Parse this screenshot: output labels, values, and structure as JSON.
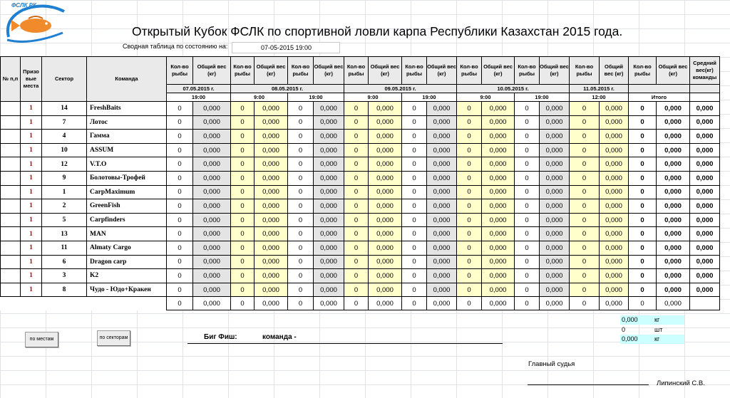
{
  "logo": {
    "text": "ФСЛК РК",
    "colors": {
      "ring": "#1f7fd0",
      "fish": "#f08a2a"
    }
  },
  "title": "Открытый Кубок ФСЛК по спортивной ловли карпа Республики Казахстан 2015 года.",
  "status": {
    "label": "Сводная таблица по состоянию на:",
    "value": "07-05-2015 19:00"
  },
  "headers": {
    "num": "№ п,п",
    "prize": "Призо вые места",
    "sector": "Сектор",
    "team": "Команда",
    "count": "Кол-во рыбы",
    "weight": "Общий вес (кг)",
    "weight_short": "Общий вес (кг)",
    "avg": "Средний вес(кг) команды"
  },
  "dates": [
    "07.05.2015 г.",
    "08.05.2015 г.",
    "09.05.2015 г.",
    "10.05.2015 г.",
    "11.05.2015 г."
  ],
  "times": [
    "19:00",
    "9:00",
    "19:00",
    "9:00",
    "19:00",
    "9:00",
    "19:00",
    "12:00"
  ],
  "itogo": "Итого",
  "rows": [
    {
      "place": "1",
      "sector": "14",
      "team": "FreshBaits"
    },
    {
      "place": "1",
      "sector": "7",
      "team": "Лотос"
    },
    {
      "place": "1",
      "sector": "4",
      "team": "Гамма"
    },
    {
      "place": "1",
      "sector": "10",
      "team": "ASSUM"
    },
    {
      "place": "1",
      "sector": "12",
      "team": "V.T.O"
    },
    {
      "place": "1",
      "sector": "9",
      "team": "Болотовы-Трофей"
    },
    {
      "place": "1",
      "sector": "1",
      "team": "CarpMaximum"
    },
    {
      "place": "1",
      "sector": "2",
      "team": "GreenFish"
    },
    {
      "place": "1",
      "sector": "5",
      "team": "Carpfinders"
    },
    {
      "place": "1",
      "sector": "13",
      "team": "MAN"
    },
    {
      "place": "1",
      "sector": "11",
      "team": "Almaty Cargo"
    },
    {
      "place": "1",
      "sector": "6",
      "team": "Dragon carp"
    },
    {
      "place": "1",
      "sector": "3",
      "team": "K2"
    },
    {
      "place": "1",
      "sector": "8",
      "team": "Чудо - Юдо+Кракен"
    }
  ],
  "zero_count": "0",
  "zero_weight": "0,000",
  "buttons": {
    "by_place": "по местам",
    "by_sector": "по секторам"
  },
  "bigfish": {
    "label": "Биг Фиш:",
    "team_label": "команда -"
  },
  "summary": [
    {
      "value": "0,000",
      "unit": "кг"
    },
    {
      "value": "0",
      "unit": "шт"
    },
    {
      "value": "0,000",
      "unit": "кг"
    }
  ],
  "judge": {
    "label": "Главный судья",
    "name": "Липинский С.В."
  }
}
